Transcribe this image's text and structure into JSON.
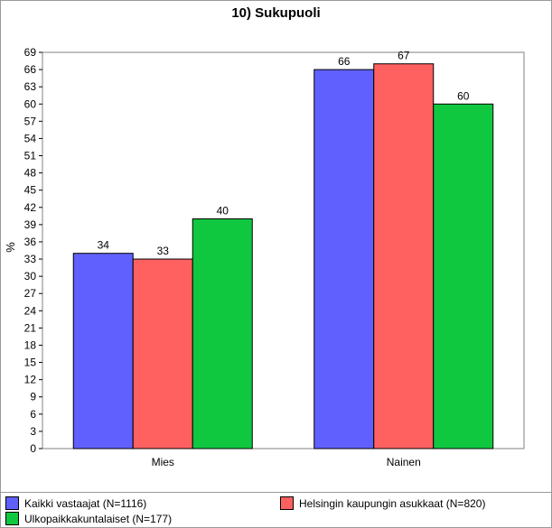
{
  "chart_data": {
    "type": "bar",
    "title": "10) Sukupuoli",
    "xlabel": "",
    "ylabel": "%",
    "ylim": [
      0,
      69
    ],
    "yticks": [
      0,
      3,
      6,
      9,
      12,
      15,
      18,
      21,
      24,
      27,
      30,
      33,
      36,
      39,
      42,
      45,
      48,
      51,
      54,
      57,
      60,
      63,
      66,
      69
    ],
    "categories": [
      "Mies",
      "Nainen"
    ],
    "series": [
      {
        "name": "Kaikki vastaajat (N=1116)",
        "color": "#6060ff",
        "values": [
          34,
          66
        ],
        "value_labels": [
          "34",
          "66"
        ]
      },
      {
        "name": "Helsingin kaupungin asukkaat (N=820)",
        "color": "#ff6060",
        "values": [
          33,
          67
        ],
        "value_labels": [
          "33",
          "67"
        ]
      },
      {
        "name": "Ulkopaikkakuntalaiset (N=177)",
        "color": "#10c840",
        "values": [
          40,
          60
        ],
        "value_labels": [
          "40",
          "60"
        ]
      }
    ],
    "grid": false,
    "legend_position": "bottom"
  }
}
